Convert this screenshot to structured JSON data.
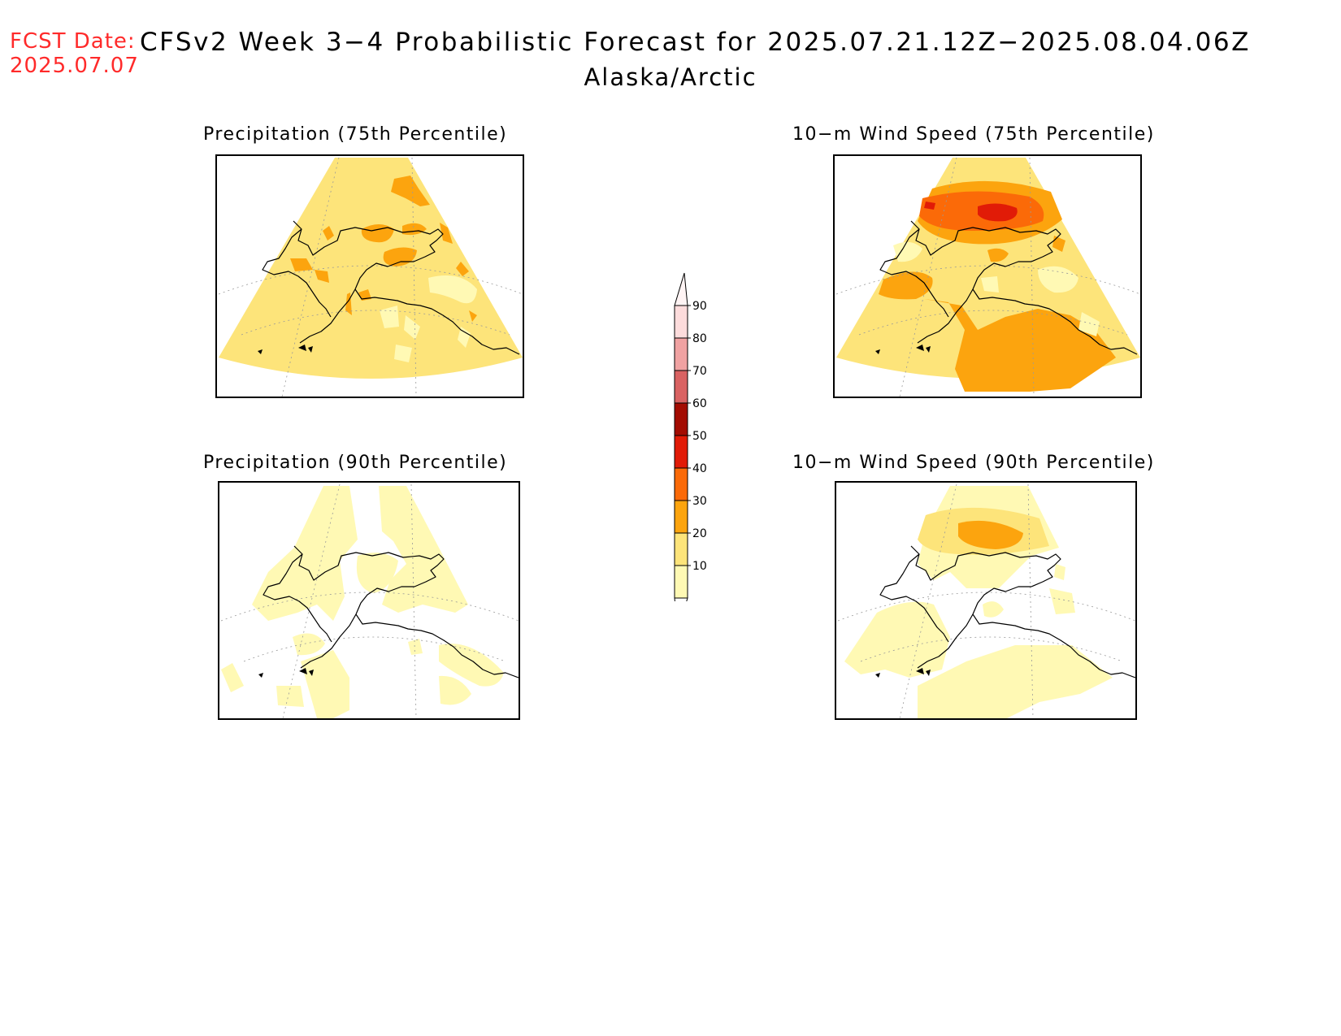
{
  "header": {
    "fcst_label": "FCST Date:",
    "fcst_date": "2025.07.07",
    "title": "CFSv2 Week 3−4 Probabilistic Forecast for 2025.07.21.12Z−2025.08.04.06Z",
    "region": "Alaska/Arctic"
  },
  "panels": [
    {
      "id": "precip75",
      "title": "Precipitation (75th Percentile)"
    },
    {
      "id": "wind75",
      "title": "10−m Wind Speed (75th Percentile)"
    },
    {
      "id": "precip90",
      "title": "Precipitation (90th Percentile)"
    },
    {
      "id": "wind90",
      "title": "10−m Wind Speed (90th Percentile)"
    }
  ],
  "colorbar": {
    "labels": [
      "90",
      "80",
      "70",
      "60",
      "50",
      "40",
      "30",
      "20",
      "10"
    ],
    "colors": {
      "10": "#fff9b4",
      "20": "#fde47a",
      "30": "#fca40e",
      "40": "#fb6a08",
      "50": "#e11b07",
      "60": "#a30c02",
      "70": "#d96262",
      "80": "#f0a2a2",
      "90": "#fddcdc"
    }
  }
}
